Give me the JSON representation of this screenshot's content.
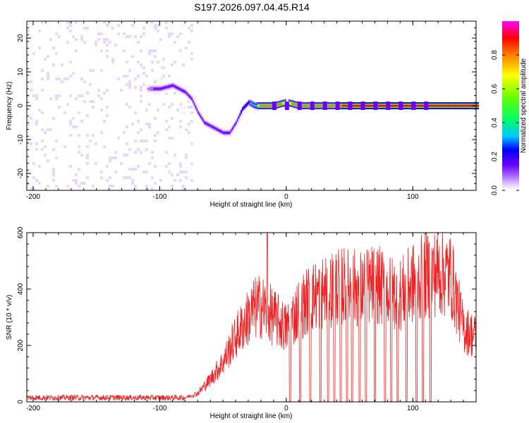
{
  "title": "S197.2026.097.04.45.R14",
  "chart_data": [
    {
      "type": "heatmap",
      "xlabel": "Height of straight line (km)",
      "ylabel": "Frequency (Hz)",
      "xlim": [
        -205,
        150
      ],
      "ylim": [
        -25,
        25
      ],
      "xticks": [
        -200,
        -100,
        0,
        100
      ],
      "xtick_labels": [
        "-200",
        "-100",
        "0",
        "100"
      ],
      "yticks": [
        -20,
        -10,
        0,
        10,
        20
      ],
      "ytick_labels": [
        "-20",
        "-10",
        "0",
        "10",
        "20"
      ],
      "colorbar": {
        "label": "Normalized spectral amplitude",
        "range": [
          0,
          1
        ],
        "ticks": [
          0.0,
          0.2,
          0.4,
          0.6,
          0.8
        ],
        "tick_labels": [
          "0.0",
          "0.2",
          "0.4",
          "0.6",
          "0.8"
        ],
        "colors": [
          "#ffffff",
          "#e8d8ff",
          "#b070ff",
          "#6a00ff",
          "#0000ff",
          "#00c8ff",
          "#00ff66",
          "#66ff00",
          "#ffff00",
          "#ff8000",
          "#ff0000",
          "#ff00ff"
        ]
      },
      "signal_track": {
        "x": [
          -110,
          -100,
          -90,
          -80,
          -75,
          -70,
          -65,
          -60,
          -55,
          -50,
          -45,
          -40,
          -35,
          -30,
          -25,
          -20,
          -10,
          0,
          10,
          20,
          150
        ],
        "y": [
          5,
          5,
          6,
          4,
          2,
          -2,
          -5,
          -6,
          -7,
          -8,
          -8,
          -5,
          -1,
          1,
          0,
          0,
          0,
          1,
          0,
          0,
          0
        ],
        "strength": [
          0.25,
          0.3,
          0.35,
          0.35,
          0.35,
          0.3,
          0.3,
          0.3,
          0.3,
          0.3,
          0.3,
          0.35,
          0.4,
          0.45,
          0.55,
          0.9,
          0.85,
          0.8,
          0.85,
          0.9,
          0.95
        ]
      }
    },
    {
      "type": "line",
      "xlabel": "Height of straight line (km)",
      "ylabel": "SNR (10 * v/v)",
      "xlim": [
        -205,
        150
      ],
      "ylim": [
        0,
        600
      ],
      "xticks": [
        -200,
        -100,
        0,
        100
      ],
      "xtick_labels": [
        "-200",
        "-100",
        "0",
        "100"
      ],
      "yticks": [
        0,
        200,
        400,
        600
      ],
      "ytick_labels": [
        "0",
        "200",
        "400",
        "600"
      ],
      "color": "#ee2222",
      "series": [
        {
          "name": "SNR",
          "envelope_x": [
            -205,
            -150,
            -100,
            -80,
            -70,
            -60,
            -50,
            -40,
            -30,
            -25,
            -20,
            -10,
            0,
            10,
            20,
            30,
            40,
            50,
            60,
            70,
            80,
            90,
            100,
            110,
            120,
            130,
            140,
            150
          ],
          "envelope_y": [
            15,
            15,
            15,
            15,
            30,
            80,
            140,
            230,
            300,
            330,
            340,
            300,
            260,
            330,
            370,
            390,
            410,
            410,
            400,
            420,
            390,
            380,
            420,
            450,
            460,
            450,
            260,
            230
          ],
          "dropouts_x": [
            3,
            11,
            19,
            27,
            33,
            38,
            43,
            48,
            52,
            58,
            63,
            70,
            78,
            83,
            88,
            95,
            103,
            108,
            114
          ],
          "spike": {
            "x": -15,
            "y": 600
          }
        }
      ]
    }
  ]
}
